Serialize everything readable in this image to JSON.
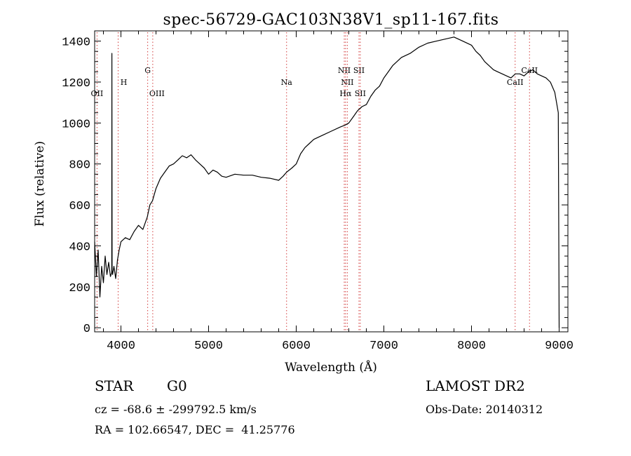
{
  "chart_data": {
    "type": "line",
    "title": "spec-56729-GAC103N38V1_sp11-167.fits",
    "xlabel": "Wavelength (Å)",
    "ylabel": "Flux (relative)",
    "xlim": [
      3700,
      9100
    ],
    "ylim": [
      -20,
      1450
    ],
    "xticks": [
      4000,
      5000,
      6000,
      7000,
      8000,
      9000
    ],
    "yticks": [
      0,
      200,
      400,
      600,
      800,
      1000,
      1200,
      1400
    ],
    "grid": false,
    "series": [
      {
        "x": [
          3700,
          3720,
          3740,
          3760,
          3780,
          3800,
          3820,
          3840,
          3860,
          3880,
          3895,
          3897,
          3899,
          3905,
          3920,
          3940,
          3960,
          3980,
          4000,
          4050,
          4100,
          4150,
          4200,
          4250,
          4300,
          4330,
          4360,
          4400,
          4450,
          4500,
          4550,
          4600,
          4650,
          4700,
          4750,
          4800,
          4850,
          4900,
          4950,
          5000,
          5050,
          5100,
          5150,
          5200,
          5300,
          5400,
          5500,
          5600,
          5700,
          5800,
          5850,
          5890,
          5950,
          6000,
          6050,
          6100,
          6150,
          6200,
          6300,
          6400,
          6500,
          6560,
          6600,
          6650,
          6700,
          6750,
          6800,
          6850,
          6900,
          6950,
          7000,
          7050,
          7100,
          7200,
          7300,
          7400,
          7500,
          7600,
          7700,
          7800,
          7900,
          8000,
          8050,
          8100,
          8150,
          8200,
          8250,
          8300,
          8350,
          8400,
          8450,
          8500,
          8550,
          8600,
          8650,
          8700,
          8750,
          8800,
          8850,
          8900,
          8950,
          8990,
          9000
        ],
        "y": [
          420,
          250,
          380,
          150,
          300,
          220,
          350,
          260,
          320,
          250,
          270,
          1340,
          280,
          260,
          300,
          240,
          330,
          380,
          420,
          440,
          430,
          470,
          500,
          480,
          540,
          600,
          620,
          680,
          730,
          760,
          790,
          800,
          820,
          840,
          830,
          845,
          820,
          800,
          780,
          750,
          770,
          760,
          740,
          735,
          750,
          745,
          745,
          735,
          730,
          720,
          740,
          760,
          780,
          800,
          850,
          880,
          900,
          920,
          940,
          960,
          980,
          990,
          1000,
          1030,
          1060,
          1080,
          1090,
          1130,
          1160,
          1180,
          1220,
          1250,
          1280,
          1320,
          1340,
          1370,
          1390,
          1400,
          1410,
          1420,
          1400,
          1380,
          1350,
          1330,
          1300,
          1280,
          1260,
          1250,
          1240,
          1230,
          1220,
          1240,
          1240,
          1230,
          1250,
          1260,
          1240,
          1230,
          1220,
          1200,
          1150,
          1050,
          0
        ]
      }
    ],
    "lines": [
      {
        "label": "OII",
        "x": 3727
      },
      {
        "label": "H",
        "x": 3968
      },
      {
        "label": "G",
        "x": 4305
      },
      {
        "label": "OIII",
        "x": 4363
      },
      {
        "label": "Na",
        "x": 5890
      },
      {
        "label": "NII",
        "x": 6548
      },
      {
        "label": "NII",
        "x": 6583
      },
      {
        "label": "Hα",
        "x": 6563
      },
      {
        "label": "SII",
        "x": 6716
      },
      {
        "label": "SII",
        "x": 6731
      },
      {
        "label": "CaII",
        "x": 8498
      },
      {
        "label": "CaII",
        "x": 8662
      }
    ]
  },
  "info": {
    "object_class": "STAR",
    "subclass": "G0",
    "survey": "LAMOST DR2",
    "redshift_line": "cz = -68.6 ± -299792.5 km/s",
    "obs_date": "Obs-Date: 20140312",
    "coords": "RA = 102.66547, DEC =  41.25776"
  }
}
